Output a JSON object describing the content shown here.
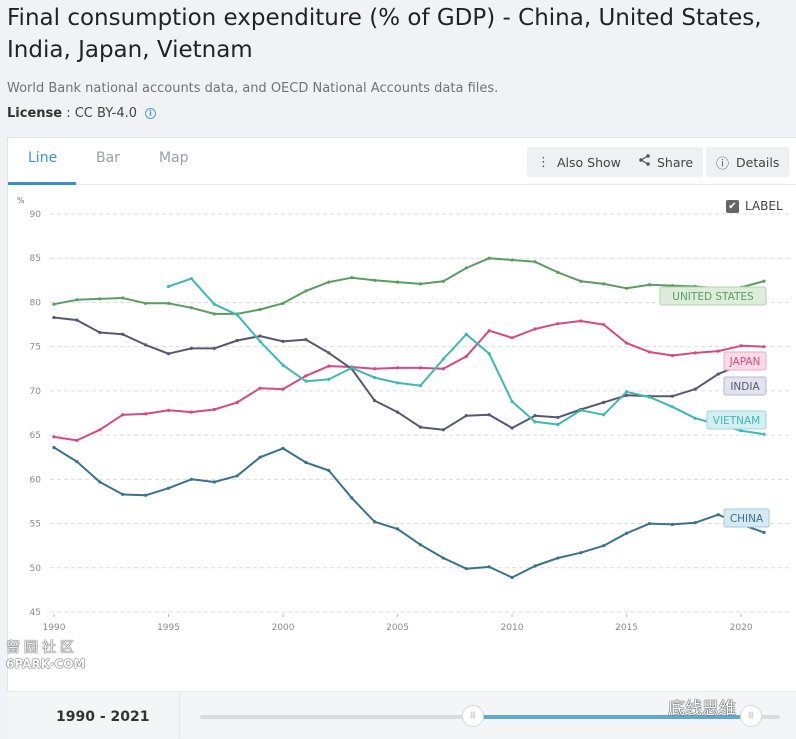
{
  "header": {
    "title": "Final consumption expenditure (% of GDP) - China, United States, India, Japan, Vietnam",
    "source": "World Bank national accounts data, and OECD National Accounts data files.",
    "license_label": "License",
    "license_sep": " : ",
    "license_value": "CC BY-4.0",
    "info_icon": "i"
  },
  "tabs": [
    {
      "label": "Line",
      "active": true
    },
    {
      "label": "Bar",
      "active": false
    },
    {
      "label": "Map",
      "active": false
    }
  ],
  "toolbar": {
    "also_show_label": "Also Show",
    "share_label": "Share",
    "details_label": "Details",
    "also_show_icon": "⋮",
    "share_icon": "<",
    "details_icon": "ⓘ"
  },
  "label_toggle": {
    "label": "LABEL",
    "checked": true,
    "check_glyph": "✔"
  },
  "watermarks": {
    "left_cn": "留园社区",
    "left_en": "6PARK·COM",
    "right_cn": "底线思维"
  },
  "footer": {
    "range_label": "1990 - 2021",
    "range_start": 1990,
    "range_end": 2021,
    "handle_glyph": "|||",
    "slider_full_min": 1960,
    "slider_full_max": 2021
  },
  "chart_data": {
    "type": "line",
    "title": "Final consumption expenditure (% of GDP)",
    "ylabel": "%",
    "xlabel": "",
    "ylim": [
      45,
      90
    ],
    "yticks": [
      45,
      50,
      55,
      60,
      65,
      70,
      75,
      80,
      85,
      90
    ],
    "xlim": [
      1990,
      2021
    ],
    "xticks": [
      1990,
      1995,
      2000,
      2005,
      2010,
      2015,
      2020
    ],
    "grid": true,
    "legend": "inline-labels-right",
    "x": [
      1990,
      1991,
      1992,
      1993,
      1994,
      1995,
      1996,
      1997,
      1998,
      1999,
      2000,
      2001,
      2002,
      2003,
      2004,
      2005,
      2006,
      2007,
      2008,
      2009,
      2010,
      2011,
      2012,
      2013,
      2014,
      2015,
      2016,
      2017,
      2018,
      2019,
      2020,
      2021
    ],
    "series": [
      {
        "name": "UNITED STATES",
        "color": "#5d9c61",
        "label_bg": "#dcedd9",
        "label_border": "#b6d4b2",
        "values": [
          79.8,
          80.3,
          80.4,
          80.5,
          79.9,
          79.9,
          79.4,
          78.7,
          78.7,
          79.2,
          79.9,
          81.3,
          82.3,
          82.8,
          82.5,
          82.3,
          82.1,
          82.4,
          83.9,
          85.0,
          84.8,
          84.6,
          83.4,
          82.4,
          82.1,
          81.6,
          82.0,
          81.9,
          81.8,
          81.6,
          81.7,
          82.4
        ]
      },
      {
        "name": "JAPAN",
        "color": "#d44b83",
        "label_bg": "#f9dbe6",
        "label_border": "#e8a9c1",
        "values": [
          64.8,
          64.4,
          65.6,
          67.3,
          67.4,
          67.8,
          67.6,
          67.9,
          68.7,
          70.3,
          70.2,
          71.7,
          72.8,
          72.7,
          72.5,
          72.6,
          72.6,
          72.5,
          73.9,
          76.8,
          76.0,
          77.0,
          77.6,
          77.9,
          77.5,
          75.4,
          74.4,
          74.0,
          74.3,
          74.5,
          75.1,
          75.0
        ]
      },
      {
        "name": "INDIA",
        "color": "#565873",
        "label_bg": "#e3e3ef",
        "label_border": "#b9b9cf",
        "values": [
          78.3,
          78.0,
          76.6,
          76.4,
          75.2,
          74.2,
          74.8,
          74.8,
          75.7,
          76.2,
          75.6,
          75.8,
          74.3,
          72.5,
          68.9,
          67.6,
          65.9,
          65.6,
          67.2,
          67.3,
          65.8,
          67.2,
          67.0,
          67.9,
          68.7,
          69.5,
          69.4,
          69.4,
          70.2,
          71.9,
          73.0,
          72.6
        ]
      },
      {
        "name": "VIETNAM",
        "color": "#3fb8b4",
        "label_bg": "#d3eff1",
        "label_border": "#9dd6da",
        "values": [
          null,
          null,
          null,
          null,
          null,
          81.8,
          82.7,
          79.8,
          78.6,
          75.6,
          72.9,
          71.1,
          71.3,
          72.6,
          71.5,
          70.9,
          70.6,
          73.6,
          76.4,
          74.2,
          68.8,
          66.5,
          66.2,
          67.8,
          67.3,
          69.9,
          69.3,
          68.2,
          66.9,
          66.2,
          65.5,
          65.1
        ]
      },
      {
        "name": "CHINA",
        "color": "#3a7389",
        "label_bg": "#d6e8f2",
        "label_border": "#a6c7da",
        "values": [
          63.6,
          62.0,
          59.7,
          58.3,
          58.2,
          59.0,
          60.0,
          59.7,
          60.4,
          62.5,
          63.5,
          61.9,
          61.0,
          57.9,
          55.2,
          54.4,
          52.6,
          51.1,
          49.9,
          50.1,
          48.9,
          50.2,
          51.1,
          51.7,
          52.5,
          53.9,
          55.0,
          54.9,
          55.1,
          56.0,
          54.9,
          54.0
        ]
      }
    ]
  }
}
